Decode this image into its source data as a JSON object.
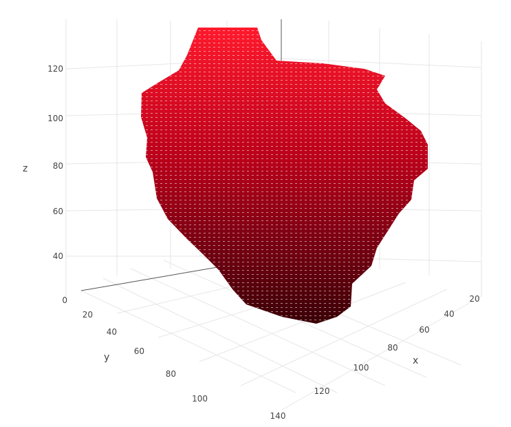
{
  "chart_data": {
    "type": "scatter",
    "subtype": "3d-voxel",
    "title": "",
    "axes": {
      "x": {
        "label": "x",
        "ticks": [
          "20",
          "40",
          "60",
          "80",
          "100",
          "120",
          "140"
        ]
      },
      "y": {
        "label": "y",
        "ticks": [
          "20",
          "40",
          "60",
          "80",
          "100"
        ]
      },
      "z": {
        "label": "z",
        "ticks": [
          "0",
          "40",
          "60",
          "80",
          "100",
          "120"
        ]
      }
    },
    "colorscale": {
      "low": "#3a0006",
      "high": "#ff1a2d"
    },
    "grid": true,
    "legend": "none"
  }
}
